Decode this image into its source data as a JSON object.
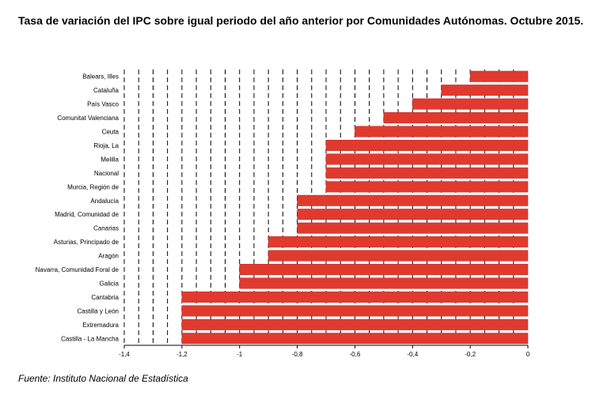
{
  "title": "Tasa de variación del IPC sobre igual periodo del año anterior por Comunidades Autónomas. Octubre 2015.",
  "source": "Fuente: Instituto Nacional de Estadística",
  "chart_data": {
    "type": "bar",
    "orientation": "horizontal",
    "categories": [
      "Balears, Illes",
      "Cataluña",
      "País Vasco",
      "Comunitat Valenciana",
      "Ceuta",
      "Rioja, La",
      "Melilla",
      "Nacional",
      "Murcia, Región de",
      "Andalucía",
      "Madrid, Comunidad de",
      "Canarias",
      "Asturias, Principado de",
      "Aragón",
      "Navarra, Comunidad Foral de",
      "Galicia",
      "Cantabria",
      "Castilla y León",
      "Extremadura",
      "Castilla - La Mancha"
    ],
    "values": [
      -0.2,
      -0.3,
      -0.4,
      -0.5,
      -0.6,
      -0.7,
      -0.7,
      -0.7,
      -0.7,
      -0.8,
      -0.8,
      -0.8,
      -0.9,
      -0.9,
      -1.0,
      -1.0,
      -1.2,
      -1.2,
      -1.2,
      -1.2
    ],
    "xlim": [
      -1.4,
      0
    ],
    "xticks": [
      -1.4,
      -1.2,
      -1,
      -0.8,
      -0.6,
      -0.4,
      -0.2,
      0
    ],
    "xtick_labels": [
      "-1,4",
      "-1,2",
      "-1",
      "-0,8",
      "-0,6",
      "-0,4",
      "-0,2",
      "0"
    ],
    "grid": "vertical dashed",
    "bar_color": "#e03a2e",
    "bar_edge_color": "#c0282a"
  }
}
